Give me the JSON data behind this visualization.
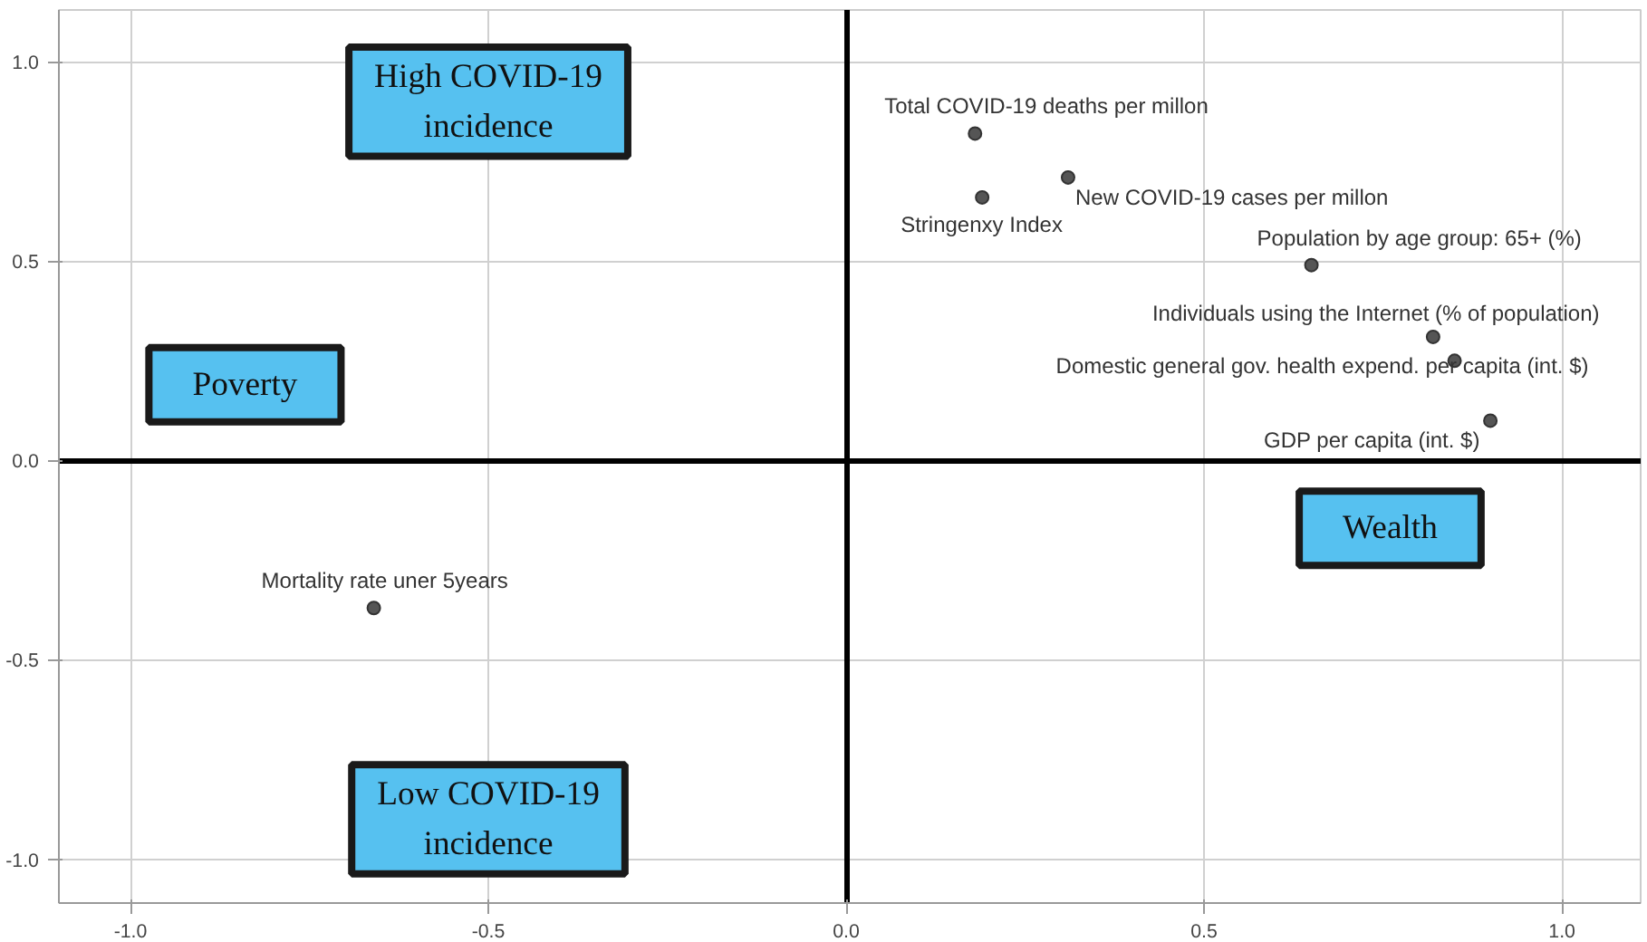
{
  "chart_data": {
    "type": "scatter",
    "x": [
      0.18,
      0.31,
      0.19,
      0.65,
      0.82,
      0.85,
      0.9,
      -0.66
    ],
    "values": [
      0.82,
      0.71,
      0.66,
      0.49,
      0.31,
      0.25,
      0.1,
      -0.37
    ],
    "color": "#555555",
    "marker": "circle",
    "grid": true,
    "xlim": [
      -1.1,
      1.11
    ],
    "ylim": [
      -1.11,
      1.13
    ],
    "xticks": [
      {
        "value": -1,
        "label": "-1.0"
      },
      {
        "value": -0.5,
        "label": "-0.5"
      },
      {
        "value": 0,
        "label": "0.0"
      },
      {
        "value": 0.5,
        "label": "0.5"
      },
      {
        "value": 1,
        "label": "1.0"
      }
    ],
    "yticks": [
      {
        "value": -1,
        "label": "-1.0"
      },
      {
        "value": -0.5,
        "label": "-0.5"
      },
      {
        "value": 0,
        "label": "0.0"
      },
      {
        "value": 0.5,
        "label": "0.5"
      },
      {
        "value": 1,
        "label": "1.0"
      }
    ],
    "annotations": [
      {
        "text": "Total COVID-19 deaths per millon",
        "x": 0.18,
        "y": 0.82
      },
      {
        "text": "New COVID-19 cases per millon",
        "x": 0.31,
        "y": 0.71
      },
      {
        "text": "Stringenxy Index",
        "x": 0.19,
        "y": 0.66
      },
      {
        "text": "Population by age group: 65+ (%)",
        "x": 0.65,
        "y": 0.49
      },
      {
        "text": "Individuals using the Internet (% of population)",
        "x": 0.82,
        "y": 0.31
      },
      {
        "text": "Domestic general gov. health expend. per capita (int. $)",
        "x": 0.85,
        "y": 0.25
      },
      {
        "text": "GDP per capita (int. $)",
        "x": 0.9,
        "y": 0.1
      },
      {
        "text": "Mortality rate uner 5years",
        "x": -0.66,
        "y": -0.37
      },
      "High COVID-19\nincidence",
      "Poverty",
      "Wealth",
      "Low COVID-19\nincidence"
    ]
  }
}
